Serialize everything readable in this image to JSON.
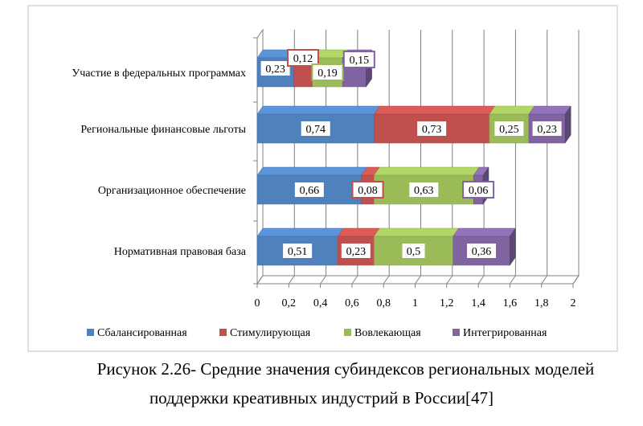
{
  "chart_data": {
    "type": "bar",
    "orientation": "horizontal",
    "stacked": true,
    "three_d": true,
    "categories": [
      "Участие в федеральных программах",
      "Региональные финансовые льготы",
      "Организационное обеспечение",
      "Нормативная правовая база"
    ],
    "series": [
      {
        "name": "Сбалансированная",
        "color": "#4f81bd",
        "values": [
          0.23,
          0.74,
          0.66,
          0.51
        ]
      },
      {
        "name": "Стимулирующая",
        "color": "#c0504d",
        "values": [
          0.12,
          0.73,
          0.08,
          0.23
        ]
      },
      {
        "name": "Вовлекающая",
        "color": "#9bbb59",
        "values": [
          0.19,
          0.25,
          0.63,
          0.5
        ]
      },
      {
        "name": "Интегрированная",
        "color": "#8064a2",
        "values": [
          0.15,
          0.23,
          0.06,
          0.36
        ]
      }
    ],
    "data_labels": [
      [
        "0,23",
        "0,74",
        "0,66",
        "0,51"
      ],
      [
        "0,12",
        "0,73",
        "0,08",
        "0,23"
      ],
      [
        "0,19",
        "0,25",
        "0,63",
        "0,5"
      ],
      [
        "0,15",
        "0,23",
        "0,06",
        "0,36"
      ]
    ],
    "x_ticks": [
      0,
      0.2,
      0.4,
      0.6,
      0.8,
      1,
      1.2,
      1.4,
      1.6,
      1.8,
      2
    ],
    "x_tick_labels": [
      "0",
      "0,2",
      "0,4",
      "0,6",
      "0,8",
      "1",
      "1,2",
      "1,4",
      "1,6",
      "1,8",
      "2"
    ],
    "xlim": [
      0,
      2
    ],
    "grid": true,
    "legend_position": "bottom"
  },
  "caption": {
    "line1": "Рисунок 2.26- Средние значения субиндексов региональных моделей",
    "line2": "поддержки креативных индустрий в России[47]"
  }
}
